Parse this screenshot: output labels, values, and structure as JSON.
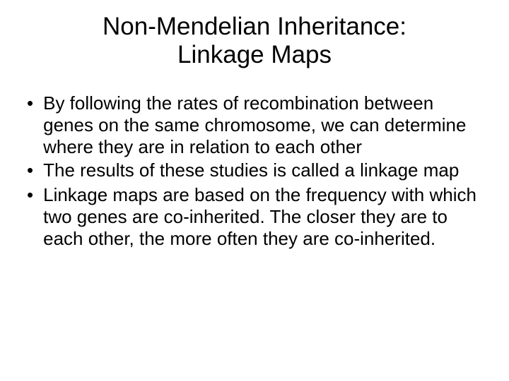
{
  "slide": {
    "title_line1": "Non-Mendelian Inheritance:",
    "title_line2": "Linkage Maps",
    "bullets": [
      "By following the rates of recombination between genes on the same chromosome, we can determine where they are in relation to each other",
      "The results of these studies is called a linkage map",
      "Linkage maps are based on the frequency with which two genes are co-inherited.  The closer they are to each other, the more often they are co-inherited."
    ]
  },
  "styling": {
    "background_color": "#ffffff",
    "text_color": "#000000",
    "title_fontsize": 35,
    "body_fontsize": 26,
    "font_family": "Arial",
    "bullet_marker": "•"
  }
}
